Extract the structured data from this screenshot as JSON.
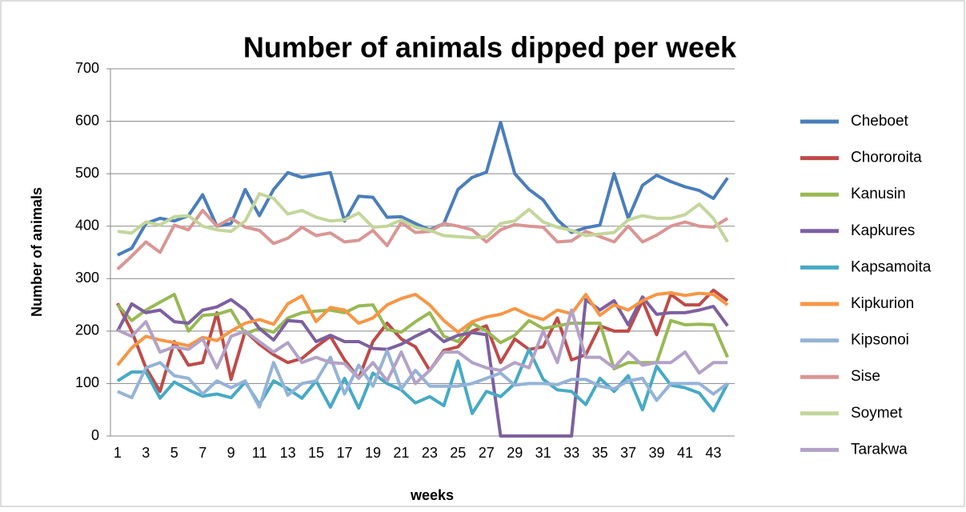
{
  "chart_data": {
    "type": "line",
    "title": "Number of animals dipped per week",
    "x_label": "weeks",
    "y_label": "Number of animals",
    "categories": [
      "1",
      null,
      "3",
      null,
      "5",
      null,
      "7",
      null,
      "9",
      null,
      "11",
      null,
      "13",
      null,
      "15",
      null,
      "17",
      null,
      "19",
      null,
      "21",
      null,
      "23",
      null,
      "25",
      null,
      "27",
      null,
      "29",
      null,
      "31",
      null,
      "33",
      null,
      "35",
      null,
      "37",
      null,
      "39",
      null,
      "41",
      null,
      "43",
      null
    ],
    "ylim": [
      0,
      700
    ],
    "yticks": [
      0,
      100,
      200,
      300,
      400,
      500,
      600,
      700
    ],
    "grid": true,
    "legend": "right",
    "series": [
      {
        "name": "Cheboet",
        "color": "#4a7ebb",
        "values": [
          345,
          358,
          405,
          415,
          410,
          420,
          460,
          400,
          405,
          470,
          420,
          470,
          502,
          493,
          498,
          502,
          410,
          457,
          455,
          417,
          418,
          405,
          393,
          405,
          470,
          493,
          503,
          598,
          500,
          470,
          450,
          412,
          388,
          397,
          402,
          500,
          415,
          478,
          497,
          485,
          475,
          468,
          453,
          492
        ]
      },
      {
        "name": "Chororoita",
        "color": "#be4b48",
        "values": [
          253,
          200,
          130,
          85,
          180,
          135,
          140,
          235,
          108,
          200,
          175,
          155,
          140,
          148,
          170,
          190,
          145,
          110,
          180,
          215,
          185,
          170,
          125,
          163,
          170,
          200,
          210,
          140,
          185,
          165,
          170,
          225,
          145,
          155,
          210,
          200,
          200,
          258,
          193,
          270,
          250,
          250,
          278,
          258
        ]
      },
      {
        "name": "Kanusin",
        "color": "#98b954",
        "values": [
          250,
          220,
          240,
          255,
          270,
          200,
          230,
          232,
          240,
          195,
          205,
          198,
          225,
          235,
          238,
          240,
          235,
          248,
          250,
          203,
          198,
          218,
          235,
          190,
          180,
          215,
          200,
          178,
          192,
          220,
          205,
          210,
          215,
          215,
          215,
          128,
          140,
          140,
          140,
          220,
          212,
          213,
          212,
          150
        ]
      },
      {
        "name": "Kapkures",
        "color": "#7d60a0",
        "values": [
          200,
          252,
          235,
          240,
          218,
          215,
          240,
          246,
          260,
          240,
          205,
          183,
          220,
          218,
          180,
          192,
          180,
          180,
          167,
          165,
          175,
          190,
          203,
          180,
          192,
          197,
          193,
          0,
          0,
          0,
          0,
          0,
          0,
          260,
          240,
          258,
          212,
          265,
          232,
          235,
          235,
          240,
          247,
          210
        ]
      },
      {
        "name": "Kapsamoita",
        "color": "#46aac5",
        "values": [
          105,
          122,
          122,
          72,
          103,
          88,
          76,
          80,
          73,
          103,
          60,
          105,
          90,
          72,
          105,
          55,
          110,
          53,
          120,
          100,
          88,
          63,
          75,
          58,
          143,
          43,
          85,
          75,
          100,
          165,
          108,
          88,
          85,
          60,
          110,
          85,
          115,
          50,
          133,
          97,
          92,
          82,
          48,
          100
        ]
      },
      {
        "name": "Kipkurion",
        "color": "#f79646",
        "values": [
          135,
          168,
          190,
          183,
          178,
          172,
          188,
          182,
          200,
          215,
          222,
          213,
          252,
          267,
          218,
          245,
          240,
          215,
          225,
          250,
          262,
          270,
          250,
          220,
          198,
          218,
          227,
          232,
          243,
          230,
          222,
          240,
          233,
          270,
          230,
          250,
          240,
          258,
          270,
          273,
          268,
          272,
          270,
          250
        ]
      },
      {
        "name": "Kipsonoi",
        "color": "#95b3d7",
        "values": [
          85,
          73,
          130,
          140,
          115,
          110,
          80,
          105,
          92,
          105,
          55,
          140,
          78,
          100,
          105,
          150,
          80,
          135,
          95,
          163,
          90,
          125,
          95,
          95,
          95,
          100,
          110,
          120,
          97,
          100,
          100,
          98,
          108,
          108,
          95,
          90,
          105,
          110,
          68,
          100,
          100,
          100,
          80,
          100
        ]
      },
      {
        "name": "Sise",
        "color": "#d99694",
        "values": [
          318,
          343,
          370,
          350,
          402,
          393,
          430,
          400,
          415,
          398,
          392,
          367,
          377,
          398,
          382,
          387,
          370,
          373,
          392,
          363,
          407,
          388,
          390,
          405,
          400,
          393,
          370,
          393,
          403,
          400,
          398,
          370,
          372,
          390,
          380,
          370,
          400,
          370,
          383,
          400,
          408,
          400,
          398,
          415
        ]
      },
      {
        "name": "Soymet",
        "color": "#c3d69b",
        "values": [
          390,
          387,
          408,
          402,
          418,
          420,
          400,
          393,
          390,
          410,
          462,
          453,
          423,
          430,
          417,
          410,
          412,
          425,
          398,
          400,
          412,
          398,
          392,
          382,
          380,
          378,
          380,
          405,
          410,
          432,
          408,
          398,
          392,
          382,
          385,
          388,
          412,
          420,
          415,
          415,
          422,
          442,
          415,
          370
        ]
      },
      {
        "name": "Tarakwa",
        "color": "#b3a2c7",
        "values": [
          202,
          190,
          218,
          160,
          170,
          165,
          185,
          130,
          190,
          200,
          180,
          160,
          178,
          140,
          150,
          140,
          138,
          110,
          140,
          105,
          160,
          100,
          125,
          160,
          160,
          140,
          130,
          125,
          140,
          130,
          200,
          140,
          240,
          150,
          150,
          130,
          160,
          135,
          140,
          140,
          160,
          120,
          140,
          140
        ]
      }
    ]
  }
}
